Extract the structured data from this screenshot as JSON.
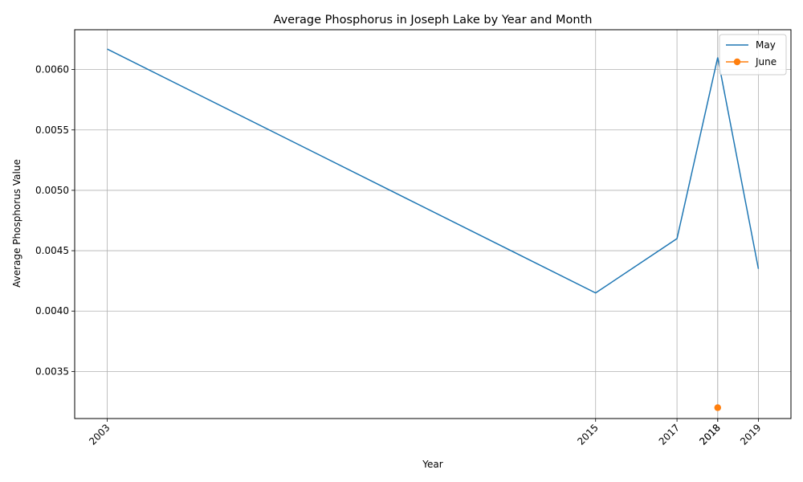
{
  "chart_data": {
    "type": "line",
    "title": "Average Phosphorus in Joseph Lake by Year and Month",
    "xlabel": "Year",
    "ylabel": "Average Phosphorus Value",
    "x_ticks": [
      "2003",
      "2015",
      "2017",
      "2018",
      "2018",
      "2019"
    ],
    "y_ticks": [
      "0.0035",
      "0.0040",
      "0.0045",
      "0.0050",
      "0.0055",
      "0.0060"
    ],
    "xlim": [
      2002.2,
      2019.8
    ],
    "ylim": [
      0.00311,
      0.00633
    ],
    "grid": true,
    "legend_position": "top-right",
    "series": [
      {
        "name": "May",
        "color": "#1f77b4",
        "marker": false,
        "x": [
          2003,
          2015,
          2017,
          2018,
          2019
        ],
        "y": [
          0.00617,
          0.00415,
          0.0046,
          0.0061,
          0.00435
        ]
      },
      {
        "name": "June",
        "color": "#ff7f0e",
        "marker": true,
        "x": [
          2018
        ],
        "y": [
          0.0032
        ]
      }
    ]
  }
}
